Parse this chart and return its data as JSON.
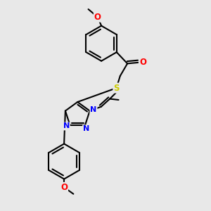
{
  "background_color": "#e8e8e8",
  "bond_color": "#000000",
  "N_color": "#0000ff",
  "O_color": "#ff0000",
  "S_color": "#cccc00",
  "line_width": 1.5,
  "figsize": [
    3.0,
    3.0
  ],
  "dpi": 100,
  "xlim": [
    0,
    10
  ],
  "ylim": [
    0,
    10
  ]
}
